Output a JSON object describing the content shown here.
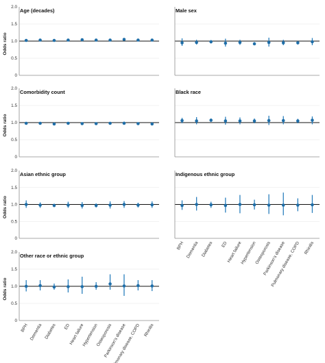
{
  "chart_data": {
    "type": "scatter",
    "description_style": "point estimates with confidence intervals",
    "ylabel": "Odds ratio",
    "ylim": [
      0,
      2.0
    ],
    "yticks": [
      "0",
      "0.5",
      "1.0",
      "1.5",
      "2.0"
    ],
    "reference_line": 1.0,
    "colors": {
      "point": "#1f6ea8",
      "interval": "#2a7fbd",
      "reference": "#111111"
    },
    "categories": [
      "BPH",
      "Dementia",
      "Diabetes",
      "ED",
      "Heart failure",
      "Hypertension",
      "Osteoporosis",
      "Parkinson's disease",
      "Pulmonary disease, COPD",
      "Rhinitis"
    ],
    "panels": [
      {
        "title": "Age (decades)",
        "values": [
          1.02,
          1.03,
          1.02,
          1.03,
          1.04,
          1.03,
          1.03,
          1.05,
          1.03,
          1.03
        ],
        "lower": [
          1.0,
          1.01,
          1.0,
          1.01,
          1.02,
          1.01,
          1.01,
          1.02,
          1.01,
          1.01
        ],
        "upper": [
          1.04,
          1.05,
          1.04,
          1.05,
          1.06,
          1.05,
          1.05,
          1.08,
          1.05,
          1.05
        ]
      },
      {
        "title": "Male sex",
        "values": [
          0.95,
          0.96,
          0.98,
          0.94,
          0.96,
          0.92,
          0.96,
          0.95,
          0.95,
          0.98
        ],
        "lower": [
          0.86,
          0.9,
          0.93,
          0.84,
          0.89,
          0.88,
          0.84,
          0.88,
          0.9,
          0.88
        ],
        "upper": [
          1.08,
          1.04,
          1.03,
          1.07,
          1.04,
          0.97,
          1.1,
          1.04,
          1.0,
          1.09
        ]
      },
      {
        "title": "Comorbidity count",
        "values": [
          0.98,
          0.98,
          0.96,
          0.98,
          0.97,
          0.97,
          0.98,
          0.98,
          0.97,
          0.96
        ],
        "lower": [
          0.96,
          0.95,
          0.94,
          0.96,
          0.94,
          0.95,
          0.96,
          0.94,
          0.95,
          0.94
        ],
        "upper": [
          1.0,
          1.01,
          0.98,
          1.0,
          1.0,
          0.99,
          1.0,
          1.03,
          0.99,
          0.98
        ]
      },
      {
        "title": "Black race",
        "values": [
          1.06,
          1.05,
          1.07,
          1.05,
          1.05,
          1.05,
          1.06,
          1.06,
          1.05,
          1.07
        ],
        "lower": [
          0.98,
          0.95,
          1.02,
          0.94,
          0.95,
          0.98,
          0.93,
          0.95,
          0.98,
          0.95
        ],
        "upper": [
          1.14,
          1.16,
          1.12,
          1.17,
          1.15,
          1.12,
          1.2,
          1.19,
          1.11,
          1.18
        ]
      },
      {
        "title": "Asian ethnic group",
        "values": [
          1.0,
          0.98,
          0.97,
          0.98,
          0.97,
          0.97,
          0.98,
          1.0,
          0.98,
          0.99
        ],
        "lower": [
          0.9,
          0.9,
          0.92,
          0.9,
          0.88,
          0.91,
          0.88,
          0.9,
          0.91,
          0.9
        ],
        "upper": [
          1.12,
          1.06,
          1.02,
          1.08,
          1.07,
          1.03,
          1.09,
          1.1,
          1.05,
          1.09
        ]
      },
      {
        "title": "Indigenous ethnic group",
        "values": [
          0.97,
          1.0,
          0.99,
          0.97,
          1.0,
          0.99,
          0.98,
          0.98,
          0.98,
          0.99
        ],
        "lower": [
          0.84,
          0.82,
          0.9,
          0.76,
          0.74,
          0.85,
          0.72,
          0.68,
          0.8,
          0.75
        ],
        "upper": [
          1.12,
          1.22,
          1.08,
          1.2,
          1.28,
          1.14,
          1.3,
          1.35,
          1.18,
          1.28
        ]
      },
      {
        "title": "Other race or ethnic group",
        "values": [
          1.0,
          1.02,
          0.98,
          0.99,
          0.99,
          1.0,
          1.07,
          1.01,
          1.02,
          1.01
        ],
        "lower": [
          0.85,
          0.88,
          0.9,
          0.82,
          0.78,
          0.9,
          0.9,
          0.72,
          0.88,
          0.86
        ],
        "upper": [
          1.18,
          1.18,
          1.08,
          1.2,
          1.28,
          1.12,
          1.35,
          1.35,
          1.18,
          1.18
        ]
      }
    ]
  }
}
